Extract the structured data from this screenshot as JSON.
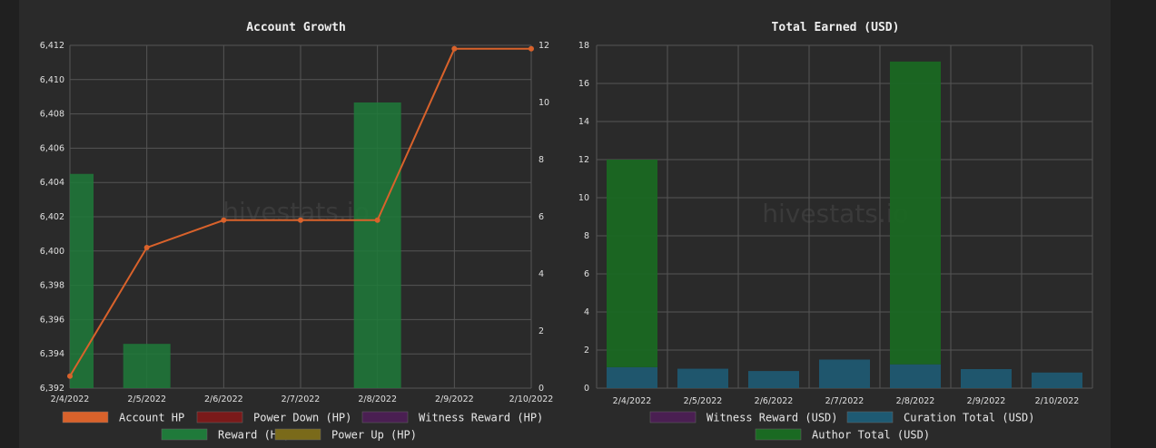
{
  "watermark": "hivestats.io",
  "chart_data": [
    {
      "type": "bar",
      "title": "Account Growth",
      "categories": [
        "2/4/2022",
        "2/5/2022",
        "2/6/2022",
        "2/7/2022",
        "2/8/2022",
        "2/9/2022",
        "2/10/2022"
      ],
      "y_left": {
        "min": 6392,
        "max": 6412,
        "step": 2
      },
      "y_right": {
        "min": 0,
        "max": 12,
        "step": 2
      },
      "grid": true,
      "legend_position": "bottom",
      "series": [
        {
          "name": "Account HP",
          "type": "line",
          "axis": "left",
          "color": "#d9622b",
          "values": [
            6392.7,
            6400.2,
            6401.8,
            6401.8,
            6401.8,
            6411.8,
            6411.8
          ]
        },
        {
          "name": "Power Down (HP)",
          "type": "bar",
          "axis": "right",
          "color": "#7a1a1a",
          "values": [
            0,
            0,
            0,
            0,
            0,
            0,
            0
          ]
        },
        {
          "name": "Witness Reward (HP)",
          "type": "bar",
          "axis": "right",
          "color": "#4a1f52",
          "values": [
            0,
            0,
            0,
            0,
            0,
            0,
            0
          ]
        },
        {
          "name": "Reward (HP)",
          "type": "bar",
          "axis": "right",
          "color": "#1f7a3a",
          "values": [
            7.5,
            1.55,
            0,
            0,
            10,
            0,
            0
          ]
        },
        {
          "name": "Power Up (HP)",
          "type": "bar",
          "axis": "right",
          "color": "#7a6a1a",
          "values": [
            0,
            0,
            0,
            0,
            0,
            0,
            0
          ]
        }
      ]
    },
    {
      "type": "bar",
      "title": "Total Earned (USD)",
      "categories": [
        "2/4/2022",
        "2/5/2022",
        "2/6/2022",
        "2/7/2022",
        "2/8/2022",
        "2/9/2022",
        "2/10/2022"
      ],
      "y": {
        "min": 0,
        "max": 18,
        "step": 2
      },
      "grid": true,
      "legend_position": "bottom",
      "series": [
        {
          "name": "Witness Reward (USD)",
          "color": "#4a1f52",
          "values": [
            0,
            0,
            0,
            0,
            0,
            0,
            0
          ]
        },
        {
          "name": "Curation Total (USD)",
          "color": "#1e5a73",
          "values": [
            1.1,
            1.02,
            0.9,
            1.5,
            1.25,
            1.0,
            0.82
          ]
        },
        {
          "name": "Author Total (USD)",
          "color": "#1a6a22",
          "values": [
            10.9,
            0,
            0,
            0,
            15.9,
            0,
            0
          ]
        }
      ]
    }
  ]
}
